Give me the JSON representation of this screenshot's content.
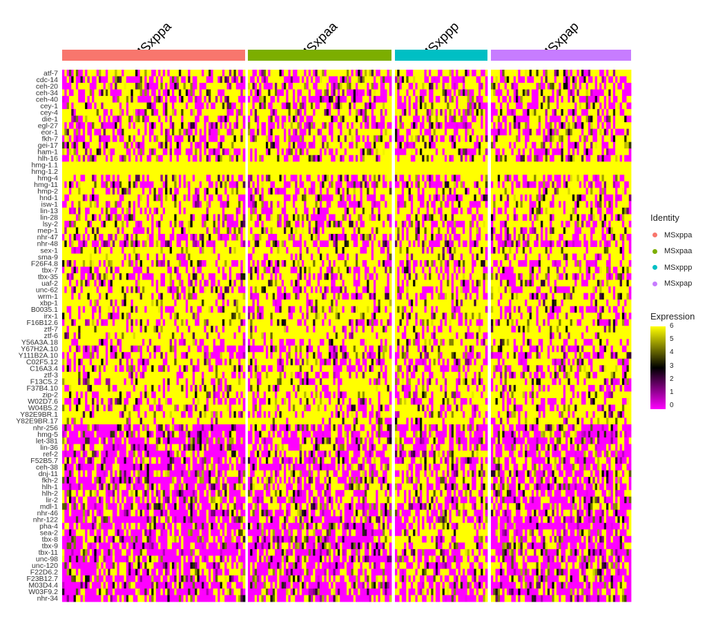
{
  "chart_data": {
    "type": "heatmap",
    "groups": [
      {
        "name": "MSxppa",
        "color": "#F8766D",
        "n_cells": 80
      },
      {
        "name": "MSxpaa",
        "color": "#7CAE00",
        "n_cells": 64
      },
      {
        "name": "MSxppp",
        "color": "#00BFC4",
        "n_cells": 41
      },
      {
        "name": "MSxpap",
        "color": "#C77CFF",
        "n_cells": 62
      }
    ],
    "genes": [
      "atf-7",
      "cdc-14",
      "ceh-20",
      "ceh-34",
      "ceh-40",
      "cey-1",
      "cey-4",
      "die-1",
      "egl-27",
      "eor-1",
      "fkh-7",
      "gei-17",
      "ham-1",
      "hlh-16",
      "hmg-1.1",
      "hmg-1.2",
      "hmg-4",
      "hmg-11",
      "hmp-2",
      "hnd-1",
      "isw-1",
      "lin-13",
      "lin-28",
      "lsy-2",
      "mep-1",
      "nhr-47",
      "nhr-48",
      "sex-1",
      "sma-9",
      "F26F4.8",
      "tbx-7",
      "tbx-35",
      "uaf-2",
      "unc-62",
      "wrm-1",
      "xbp-1",
      "B0035.1",
      "irx-1",
      "F16B12.6",
      "ztf-7",
      "ztf-6",
      "Y56A3A.18",
      "Y67H2A.10",
      "Y111B2A.10",
      "C02F5.12",
      "C16A3.4",
      "ztf-3",
      "F13C5.2",
      "F37B4.10",
      "zip-2",
      "W02D7.6",
      "W04B5.2",
      "Y82E9BR.1",
      "Y82E9BR.17",
      "nhr-256",
      "hmg-5",
      "let-381",
      "lin-36",
      "ref-2",
      "F52B5.7",
      "ceh-38",
      "dnj-11",
      "fkh-2",
      "hlh-1",
      "hlh-2",
      "lir-2",
      "mdl-1",
      "nhr-46",
      "nhr-122",
      "pha-4",
      "sea-2",
      "tbx-8",
      "tbx-9",
      "tbx-11",
      "unc-98",
      "unc-120",
      "F22D6.2",
      "F23B12.7",
      "M03D4.4",
      "W03F9.2",
      "nhr-34"
    ],
    "gene_profiles": [
      [
        0.65,
        0.7,
        0.6,
        0.65
      ],
      [
        0.4,
        0.45,
        0.4,
        0.4
      ],
      [
        0.55,
        0.5,
        0.5,
        0.5
      ],
      [
        0.55,
        0.4,
        0.45,
        0.5
      ],
      [
        0.5,
        0.35,
        0.4,
        0.5
      ],
      [
        0.7,
        0.6,
        0.65,
        0.6
      ],
      [
        0.7,
        0.65,
        0.6,
        0.65
      ],
      [
        0.6,
        0.6,
        0.55,
        0.6
      ],
      [
        0.5,
        0.5,
        0.45,
        0.5
      ],
      [
        0.55,
        0.55,
        0.5,
        0.55
      ],
      [
        0.55,
        0.5,
        0.5,
        0.55
      ],
      [
        0.6,
        0.6,
        0.55,
        0.6
      ],
      [
        0.45,
        0.55,
        0.5,
        0.5
      ],
      [
        0.5,
        0.55,
        0.5,
        0.55
      ],
      [
        1.0,
        1.0,
        1.0,
        1.0
      ],
      [
        1.0,
        1.0,
        1.0,
        1.0
      ],
      [
        0.65,
        0.55,
        0.6,
        0.6
      ],
      [
        0.5,
        0.45,
        0.5,
        0.5
      ],
      [
        0.75,
        0.7,
        0.7,
        0.7
      ],
      [
        0.6,
        0.55,
        0.5,
        0.55
      ],
      [
        0.6,
        0.55,
        0.55,
        0.55
      ],
      [
        0.7,
        0.6,
        0.6,
        0.6
      ],
      [
        0.7,
        0.6,
        0.6,
        0.65
      ],
      [
        0.7,
        0.6,
        0.55,
        0.6
      ],
      [
        0.75,
        0.7,
        0.7,
        0.7
      ],
      [
        0.55,
        0.5,
        0.5,
        0.5
      ],
      [
        0.5,
        0.5,
        0.5,
        0.5
      ],
      [
        0.9,
        0.85,
        0.85,
        0.85
      ],
      [
        0.85,
        0.8,
        0.8,
        0.85
      ],
      [
        0.7,
        0.65,
        0.65,
        0.65
      ],
      [
        0.65,
        0.6,
        0.6,
        0.6
      ],
      [
        0.55,
        0.55,
        0.5,
        0.55
      ],
      [
        0.7,
        0.65,
        0.65,
        0.65
      ],
      [
        0.6,
        0.55,
        0.5,
        0.55
      ],
      [
        0.7,
        0.65,
        0.6,
        0.65
      ],
      [
        0.85,
        0.8,
        0.8,
        0.8
      ],
      [
        0.7,
        0.6,
        0.6,
        0.65
      ],
      [
        0.8,
        0.75,
        0.75,
        0.8
      ],
      [
        0.7,
        0.65,
        0.6,
        0.65
      ],
      [
        0.85,
        0.85,
        0.8,
        0.85
      ],
      [
        0.85,
        0.85,
        0.8,
        0.85
      ],
      [
        0.65,
        0.6,
        0.6,
        0.6
      ],
      [
        0.6,
        0.55,
        0.55,
        0.55
      ],
      [
        0.6,
        0.55,
        0.55,
        0.6
      ],
      [
        0.6,
        0.55,
        0.55,
        0.6
      ],
      [
        0.65,
        0.6,
        0.6,
        0.6
      ],
      [
        0.7,
        0.65,
        0.65,
        0.65
      ],
      [
        0.7,
        0.65,
        0.6,
        0.65
      ],
      [
        0.75,
        0.7,
        0.7,
        0.7
      ],
      [
        0.75,
        0.7,
        0.7,
        0.7
      ],
      [
        0.65,
        0.6,
        0.6,
        0.6
      ],
      [
        0.7,
        0.65,
        0.6,
        0.65
      ],
      [
        0.8,
        0.75,
        0.75,
        0.75
      ],
      [
        0.85,
        0.85,
        0.85,
        0.85
      ],
      [
        0.2,
        0.45,
        0.35,
        0.3
      ],
      [
        0.2,
        0.35,
        0.3,
        0.25
      ],
      [
        0.2,
        0.4,
        0.35,
        0.25
      ],
      [
        0.3,
        0.5,
        0.4,
        0.35
      ],
      [
        0.25,
        0.45,
        0.45,
        0.3
      ],
      [
        0.2,
        0.4,
        0.35,
        0.3
      ],
      [
        0.25,
        0.4,
        0.45,
        0.3
      ],
      [
        0.3,
        0.45,
        0.45,
        0.35
      ],
      [
        0.25,
        0.5,
        0.65,
        0.35
      ],
      [
        0.2,
        0.45,
        0.5,
        0.3
      ],
      [
        0.25,
        0.55,
        0.55,
        0.35
      ],
      [
        0.3,
        0.45,
        0.45,
        0.4
      ],
      [
        0.3,
        0.4,
        0.45,
        0.35
      ],
      [
        0.3,
        0.35,
        0.5,
        0.35
      ],
      [
        0.25,
        0.35,
        0.45,
        0.3
      ],
      [
        0.25,
        0.3,
        0.4,
        0.3
      ],
      [
        0.25,
        0.3,
        0.7,
        0.3
      ],
      [
        0.25,
        0.25,
        0.6,
        0.3
      ],
      [
        0.2,
        0.25,
        0.6,
        0.25
      ],
      [
        0.2,
        0.2,
        0.4,
        0.3
      ],
      [
        0.3,
        0.3,
        0.4,
        0.35
      ],
      [
        0.3,
        0.3,
        0.4,
        0.35
      ],
      [
        0.35,
        0.3,
        0.4,
        0.3
      ],
      [
        0.3,
        0.3,
        0.35,
        0.3
      ],
      [
        0.3,
        0.25,
        0.4,
        0.3
      ],
      [
        0.3,
        0.25,
        0.4,
        0.3
      ],
      [
        0.3,
        0.25,
        0.35,
        0.3
      ]
    ],
    "color_scale": {
      "low": "#FF00FF",
      "mid": "#000000",
      "high": "#FFFF00",
      "min": 0,
      "max": 6
    },
    "legend_identity_title": "Identity",
    "legend_expression_title": "Expression",
    "colorbar_ticks": [
      "6",
      "5",
      "4",
      "3",
      "2",
      "1",
      "0"
    ],
    "xlabel": "",
    "ylabel": ""
  }
}
